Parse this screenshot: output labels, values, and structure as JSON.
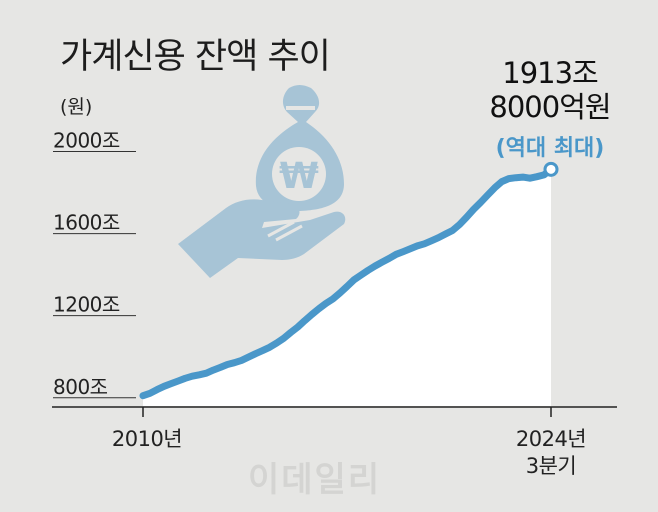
{
  "chart_data": {
    "type": "area",
    "title": "가계신용 잔액 추이",
    "ylabel": "(원)",
    "ylim": [
      760,
      2090
    ],
    "xlim": [
      2010.0,
      2024.5
    ],
    "yticks": [
      {
        "value": 2000,
        "label": "2000조"
      },
      {
        "value": 1600,
        "label": "1600조"
      },
      {
        "value": 1200,
        "label": "1200조"
      },
      {
        "value": 800,
        "label": "800조"
      }
    ],
    "xticks": [
      {
        "value": 2010.0,
        "label": "2010년"
      },
      {
        "value": 2024.5,
        "label": "2024년\n3분기"
      }
    ],
    "x": [
      2010.0,
      2010.25,
      2010.5,
      2010.75,
      2011.0,
      2011.25,
      2011.5,
      2011.75,
      2012.0,
      2012.25,
      2012.5,
      2012.75,
      2013.0,
      2013.25,
      2013.5,
      2013.75,
      2014.0,
      2014.25,
      2014.5,
      2014.75,
      2015.0,
      2015.25,
      2015.5,
      2015.75,
      2016.0,
      2016.25,
      2016.5,
      2016.75,
      2017.0,
      2017.25,
      2017.5,
      2017.75,
      2018.0,
      2018.25,
      2018.5,
      2018.75,
      2019.0,
      2019.25,
      2019.5,
      2019.75,
      2020.0,
      2020.25,
      2020.5,
      2020.75,
      2021.0,
      2021.25,
      2021.5,
      2021.75,
      2022.0,
      2022.25,
      2022.5,
      2022.75,
      2023.0,
      2023.25,
      2023.5,
      2023.75,
      2024.0,
      2024.25,
      2024.5
    ],
    "values": [
      810,
      822,
      840,
      856,
      869,
      882,
      895,
      905,
      912,
      920,
      935,
      948,
      962,
      971,
      982,
      998,
      1015,
      1030,
      1046,
      1067,
      1090,
      1118,
      1145,
      1176,
      1206,
      1234,
      1260,
      1282,
      1311,
      1342,
      1375,
      1398,
      1421,
      1442,
      1461,
      1479,
      1499,
      1512,
      1526,
      1540,
      1550,
      1565,
      1580,
      1598,
      1615,
      1644,
      1680,
      1718,
      1752,
      1788,
      1823,
      1853,
      1868,
      1872,
      1875,
      1870,
      1877,
      1886,
      1913
    ],
    "annotation": {
      "value_line1": "1913조",
      "value_line2": "8000억원",
      "note": "(역대 최대)"
    },
    "colors": {
      "line": "#4a97c9",
      "area": "#ffffff",
      "background": "#e6e6e4",
      "note": "#4a97c9",
      "icon": "#a7c4d6"
    },
    "watermark": "이데일리"
  }
}
